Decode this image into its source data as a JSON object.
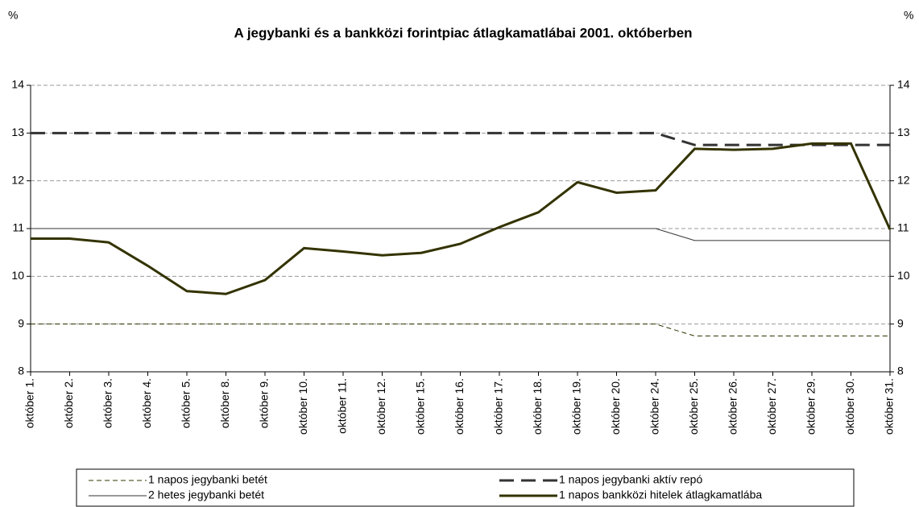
{
  "chart_data": {
    "type": "line",
    "title": "A jegybanki és a bankközi forintpiac átlagkamatlábai 2001. októberben",
    "y_label": "%",
    "y2_label": "%",
    "categories": [
      "október 1.",
      "október 2.",
      "október 3.",
      "október 4.",
      "október 5.",
      "október 8.",
      "október 9.",
      "október 10.",
      "október 11.",
      "október 12.",
      "október 15.",
      "október 16.",
      "október 17.",
      "október 18.",
      "október 19.",
      "október 20.",
      "október 24.",
      "október 25.",
      "október 26.",
      "október 27.",
      "október 29.",
      "október 30.",
      "október 31."
    ],
    "series": [
      {
        "name": "1 napos jegybanki betét",
        "color": "#333300",
        "line_style": "dashed",
        "line_weight": "light",
        "values": [
          9,
          9,
          9,
          9,
          9,
          9,
          9,
          9,
          9,
          9,
          9,
          9,
          9,
          9,
          9,
          9,
          9,
          8.75,
          8.75,
          8.75,
          8.75,
          8.75,
          8.75
        ]
      },
      {
        "name": "1 napos jegybanki aktív repó",
        "color": "#333333",
        "line_style": "dashed",
        "line_weight": "heavy",
        "values": [
          13,
          13,
          13,
          13,
          13,
          13,
          13,
          13,
          13,
          13,
          13,
          13,
          13,
          13,
          13,
          13,
          13,
          12.75,
          12.75,
          12.75,
          12.75,
          12.75,
          12.75
        ]
      },
      {
        "name": "2 hetes jegybanki betét",
        "color": "#333333",
        "line_style": "solid",
        "line_weight": "light",
        "values": [
          11,
          11,
          11,
          11,
          11,
          11,
          11,
          11,
          11,
          11,
          11,
          11,
          11,
          11,
          11,
          11,
          11,
          10.75,
          10.75,
          10.75,
          10.75,
          10.75,
          10.75
        ]
      },
      {
        "name": "1 napos bankközi hitelek átlagkamatlába",
        "color": "#333300",
        "line_style": "solid",
        "line_weight": "heavy",
        "values": [
          10.79,
          10.79,
          10.71,
          10.22,
          9.69,
          9.63,
          9.92,
          10.59,
          10.52,
          10.44,
          10.49,
          10.68,
          11.03,
          11.34,
          11.97,
          11.75,
          11.8,
          12.67,
          12.65,
          12.67,
          12.78,
          12.78,
          10.98
        ]
      }
    ],
    "ylim": [
      8,
      14
    ],
    "yticks": [
      8,
      9,
      10,
      11,
      12,
      13,
      14
    ],
    "y2lim": [
      8,
      14
    ],
    "y2ticks": [
      8,
      9,
      10,
      11,
      12,
      13,
      14
    ],
    "grid": true
  }
}
